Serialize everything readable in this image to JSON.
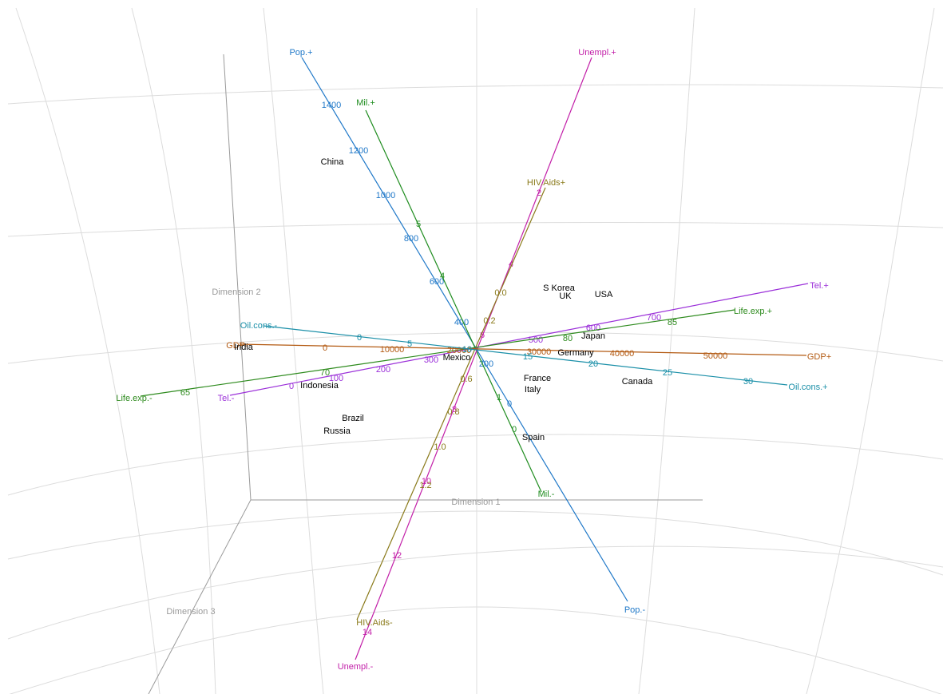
{
  "chart_data": {
    "type": "biplot-3d",
    "axes": {
      "dim1": "Dimension  1",
      "dim2": "Dimension  2",
      "dim3": "Dimension  3"
    },
    "colors": {
      "grid": "#dcdcdc",
      "frame": "#9a9a9a",
      "axis_label": "#9a9a9a",
      "point_label": "#000000"
    },
    "points": [
      {
        "label": "China",
        "id": "china"
      },
      {
        "label": "S Korea",
        "id": "skorea"
      },
      {
        "label": "UK",
        "id": "uk"
      },
      {
        "label": "USA",
        "id": "usa"
      },
      {
        "label": "India",
        "id": "india"
      },
      {
        "label": "Japan",
        "id": "japan"
      },
      {
        "label": "Mexico",
        "id": "mexico"
      },
      {
        "label": "Germany",
        "id": "germany"
      },
      {
        "label": "France",
        "id": "france"
      },
      {
        "label": "Italy",
        "id": "italy"
      },
      {
        "label": "Canada",
        "id": "canada"
      },
      {
        "label": "Indonesia",
        "id": "indonesia"
      },
      {
        "label": "Brazil",
        "id": "brazil"
      },
      {
        "label": "Russia",
        "id": "russia"
      },
      {
        "label": "Spain",
        "id": "spain"
      }
    ],
    "variables": [
      {
        "id": "pop",
        "color": "#1f78c8",
        "label_pos": "Pop.+",
        "label_neg": "Pop.-",
        "ticks": [
          {
            "v": 200,
            "t": "200"
          },
          {
            "v": 400,
            "t": "400"
          },
          {
            "v": 600,
            "t": "600"
          },
          {
            "v": 800,
            "t": "800"
          },
          {
            "v": 1000,
            "t": "1000"
          },
          {
            "v": 1200,
            "t": "1200"
          },
          {
            "v": 1400,
            "t": "1400"
          },
          {
            "v": 0,
            "t": "0"
          }
        ]
      },
      {
        "id": "mil",
        "color": "#1e8c1e",
        "label_pos": "Mil.+",
        "label_neg": "Mil.-",
        "ticks": [
          {
            "v": 0,
            "t": "0"
          },
          {
            "v": 1,
            "t": "1"
          },
          {
            "v": 4,
            "t": "4"
          },
          {
            "v": 5,
            "t": "5"
          }
        ]
      },
      {
        "id": "unempl",
        "color": "#c21fa8",
        "label_pos": "Unempl.+",
        "label_neg": "Unempl.-",
        "ticks": [
          {
            "v": 2,
            "t": "2"
          },
          {
            "v": 4,
            "t": "4"
          },
          {
            "v": 6,
            "t": "6"
          },
          {
            "v": 8,
            "t": "8"
          },
          {
            "v": 10,
            "t": "10"
          },
          {
            "v": 12,
            "t": "12"
          },
          {
            "v": 14,
            "t": "14"
          }
        ]
      },
      {
        "id": "hiv",
        "color": "#8a7a1a",
        "label_pos": "HIV.Aids+",
        "label_neg": "HIV.Aids-",
        "ticks": [
          {
            "v": 0.0,
            "t": "0.0"
          },
          {
            "v": 0.2,
            "t": "0.2"
          },
          {
            "v": 0.6,
            "t": "0.6"
          },
          {
            "v": 0.8,
            "t": "0.8"
          },
          {
            "v": 1.0,
            "t": "1.0"
          },
          {
            "v": 1.2,
            "t": "1.2"
          }
        ]
      },
      {
        "id": "tel",
        "color": "#9b30d9",
        "label_pos": "Tel.+",
        "label_neg": "Tel.-",
        "ticks": [
          {
            "v": 0,
            "t": "0"
          },
          {
            "v": 100,
            "t": "100"
          },
          {
            "v": 200,
            "t": "200"
          },
          {
            "v": 300,
            "t": "300"
          },
          {
            "v": 500,
            "t": "500"
          },
          {
            "v": 600,
            "t": "600"
          },
          {
            "v": 700,
            "t": "700"
          }
        ]
      },
      {
        "id": "life",
        "color": "#2e8b1e",
        "label_pos": "Life.exp.+",
        "label_neg": "Life.exp.-",
        "ticks": [
          {
            "v": 65,
            "t": "65"
          },
          {
            "v": 70,
            "t": "70"
          },
          {
            "v": 80,
            "t": "80"
          },
          {
            "v": 85,
            "t": "85"
          }
        ]
      },
      {
        "id": "gdp",
        "color": "#b35a12",
        "label_pos": "GDP+",
        "label_neg": "GDP-",
        "ticks": [
          {
            "v": 0,
            "t": "0"
          },
          {
            "v": 10000,
            "t": "10000"
          },
          {
            "v": 20000,
            "t": "20000"
          },
          {
            "v": 30000,
            "t": "30000"
          },
          {
            "v": 40000,
            "t": "40000"
          },
          {
            "v": 50000,
            "t": "50000"
          }
        ]
      },
      {
        "id": "oil",
        "color": "#1a8fa8",
        "label_pos": "Oil.cons.+",
        "label_neg": "Oil.cons.-",
        "ticks": [
          {
            "v": 0,
            "t": "0"
          },
          {
            "v": 5,
            "t": "5"
          },
          {
            "v": 10,
            "t": "10"
          },
          {
            "v": 15,
            "t": "15"
          },
          {
            "v": 20,
            "t": "20"
          },
          {
            "v": 25,
            "t": "25"
          },
          {
            "v": 30,
            "t": "30"
          }
        ]
      }
    ]
  }
}
